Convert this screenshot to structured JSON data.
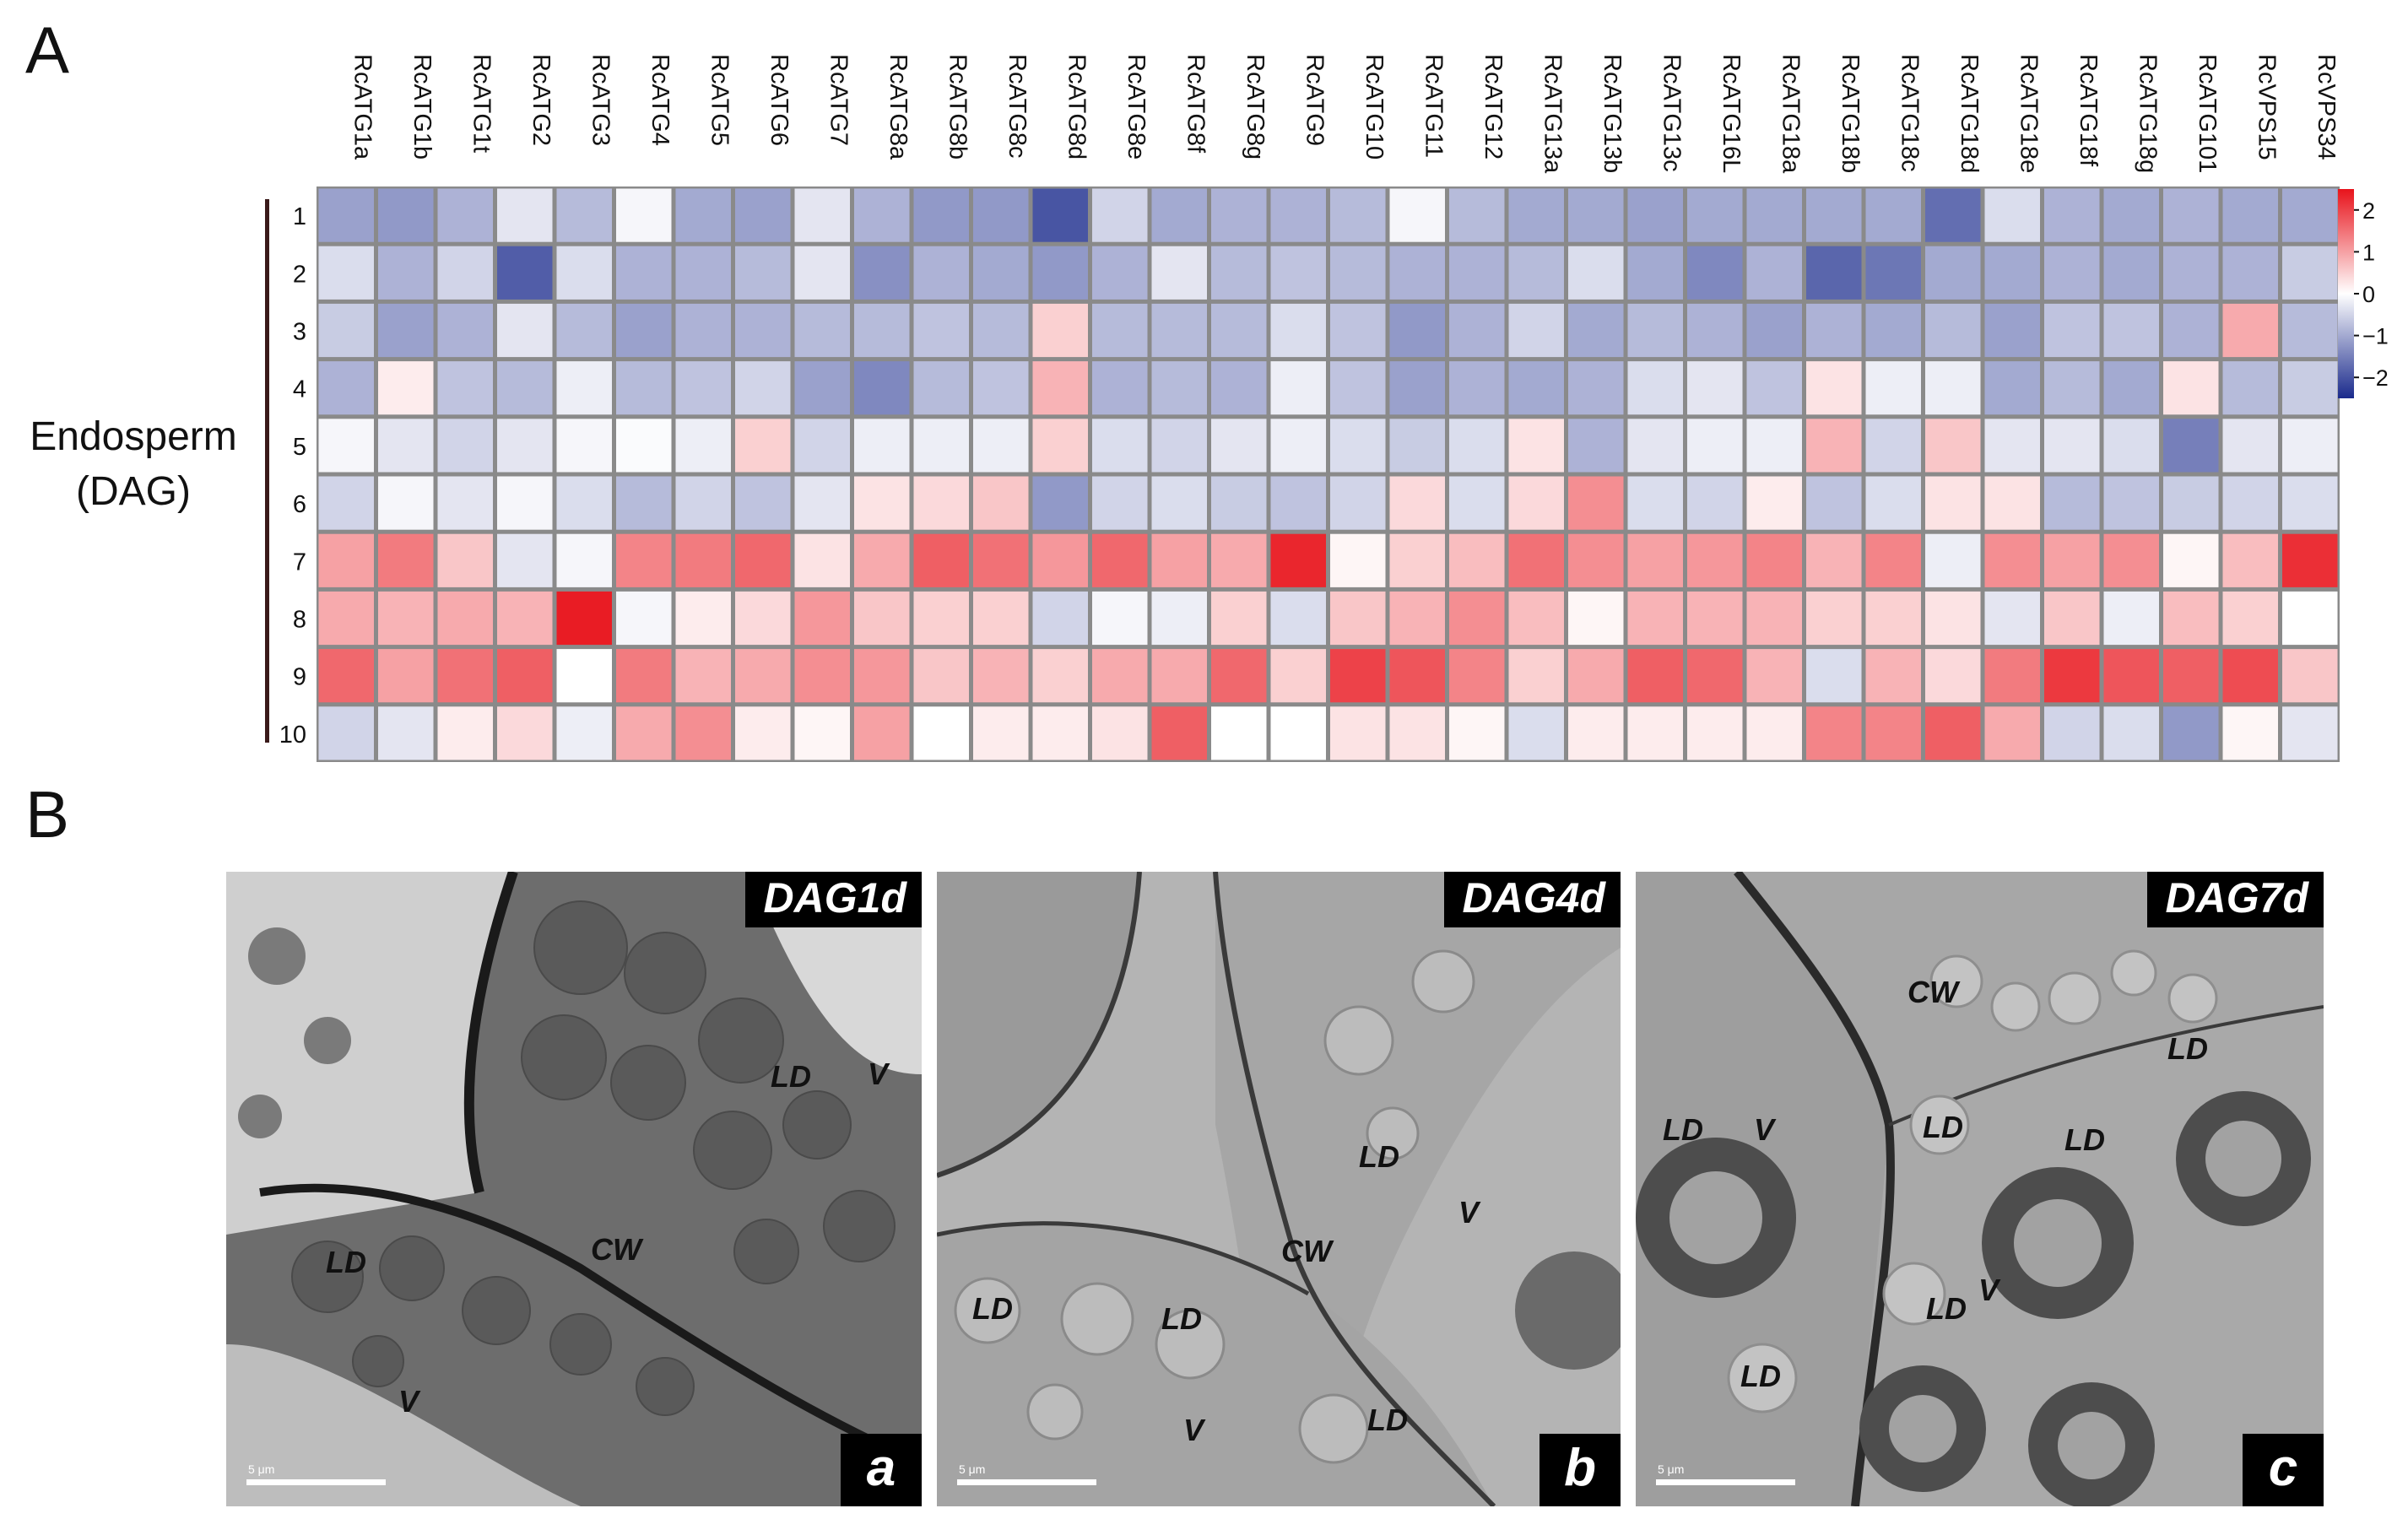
{
  "panel_a": {
    "label": "A",
    "side_label_line1": "Endosperm",
    "side_label_line2": "(DAG)"
  },
  "panel_b": {
    "label": "B"
  },
  "chart_data": {
    "type": "heatmap",
    "columns": [
      "RcATG1a",
      "RcATG1b",
      "RcATG1t",
      "RcATG2",
      "RcATG3",
      "RcATG4",
      "RcATG5",
      "RcATG6",
      "RcATG7",
      "RcATG8a",
      "RcATG8b",
      "RcATG8c",
      "RcATG8d",
      "RcATG8e",
      "RcATG8f",
      "RcATG8g",
      "RcATG9",
      "RcATG10",
      "RcATG11",
      "RcATG12",
      "RcATG13a",
      "RcATG13b",
      "RcATG13c",
      "RcATG16L",
      "RcATG18a",
      "RcATG18b",
      "RcATG18c",
      "RcATG18d",
      "RcATG18e",
      "RcATG18f",
      "RcATG18g",
      "RcATG101",
      "RcVPS15",
      "RcVPS34"
    ],
    "rows": [
      "1",
      "2",
      "3",
      "4",
      "5",
      "6",
      "7",
      "8",
      "9",
      "10"
    ],
    "values": [
      [
        -1.1,
        -1.2,
        -0.9,
        -0.3,
        -0.8,
        -0.1,
        -1.0,
        -1.1,
        -0.3,
        -0.9,
        -1.2,
        -1.2,
        -2.0,
        -0.5,
        -1.0,
        -0.9,
        -0.9,
        -0.8,
        -0.1,
        -0.8,
        -1.0,
        -1.0,
        -1.1,
        -1.0,
        -1.0,
        -1.0,
        -1.0,
        -1.7,
        -0.4,
        -0.9,
        -1.0,
        -0.9,
        -1.0,
        -1.0
      ],
      [
        -0.4,
        -0.9,
        -0.5,
        -1.9,
        -0.4,
        -0.9,
        -0.9,
        -0.8,
        -0.3,
        -1.3,
        -0.9,
        -1.0,
        -1.2,
        -0.9,
        -0.3,
        -0.8,
        -0.7,
        -0.8,
        -0.9,
        -0.9,
        -0.8,
        -0.4,
        -1.0,
        -1.4,
        -0.9,
        -1.8,
        -1.6,
        -1.0,
        -1.0,
        -0.9,
        -1.0,
        -0.9,
        -0.9,
        -0.6
      ],
      [
        -0.6,
        -1.1,
        -0.9,
        -0.3,
        -0.8,
        -1.1,
        -0.9,
        -0.9,
        -0.8,
        -0.8,
        -0.7,
        -0.8,
        0.5,
        -0.8,
        -0.8,
        -0.8,
        -0.4,
        -0.7,
        -1.2,
        -0.9,
        -0.5,
        -1.0,
        -0.8,
        -0.9,
        -1.1,
        -0.9,
        -1.0,
        -0.8,
        -1.1,
        -0.7,
        -0.7,
        -0.9,
        0.9,
        -0.8
      ],
      [
        -0.9,
        0.2,
        -0.7,
        -0.8,
        -0.2,
        -0.8,
        -0.7,
        -0.5,
        -1.1,
        -1.4,
        -0.8,
        -0.7,
        0.8,
        -0.9,
        -0.8,
        -0.9,
        -0.2,
        -0.7,
        -1.1,
        -0.9,
        -1.0,
        -0.9,
        -0.4,
        -0.3,
        -0.7,
        0.3,
        -0.2,
        -0.2,
        -1.0,
        -0.8,
        -1.0,
        0.3,
        -0.8,
        -0.6
      ],
      [
        -0.1,
        -0.3,
        -0.5,
        -0.3,
        -0.1,
        -0.05,
        -0.2,
        0.5,
        -0.5,
        -0.2,
        -0.2,
        -0.2,
        0.5,
        -0.4,
        -0.5,
        -0.3,
        -0.2,
        -0.4,
        -0.6,
        -0.4,
        0.3,
        -0.9,
        -0.3,
        -0.2,
        -0.2,
        0.8,
        -0.5,
        0.6,
        -0.3,
        -0.3,
        -0.4,
        -1.5,
        -0.3,
        -0.2
      ],
      [
        -0.5,
        -0.1,
        -0.3,
        -0.1,
        -0.4,
        -0.8,
        -0.5,
        -0.7,
        -0.3,
        0.3,
        0.4,
        0.6,
        -1.2,
        -0.5,
        -0.4,
        -0.6,
        -0.7,
        -0.5,
        0.4,
        -0.4,
        0.4,
        1.2,
        -0.4,
        -0.5,
        0.2,
        -0.7,
        -0.4,
        0.3,
        0.3,
        -0.8,
        -0.7,
        -0.6,
        -0.5,
        -0.4
      ],
      [
        1.0,
        1.4,
        0.6,
        -0.3,
        -0.1,
        1.3,
        1.4,
        1.6,
        0.3,
        0.9,
        1.7,
        1.5,
        1.1,
        1.6,
        1.0,
        0.9,
        2.3,
        0.1,
        0.5,
        0.7,
        1.5,
        1.2,
        1.0,
        1.1,
        1.3,
        0.8,
        1.3,
        -0.2,
        1.2,
        1.0,
        1.2,
        0.1,
        0.7,
        2.2
      ],
      [
        0.9,
        0.8,
        0.9,
        0.8,
        2.4,
        -0.1,
        0.2,
        0.4,
        1.1,
        0.6,
        0.5,
        0.5,
        -0.5,
        -0.1,
        -0.2,
        0.5,
        -0.4,
        0.6,
        0.8,
        1.2,
        0.7,
        0.1,
        0.8,
        0.8,
        0.8,
        0.5,
        0.5,
        0.3,
        -0.3,
        0.6,
        -0.2,
        0.7,
        0.5,
        0.0
      ],
      [
        1.6,
        1.0,
        1.5,
        1.7,
        0.0,
        1.4,
        0.8,
        0.9,
        1.2,
        1.1,
        0.6,
        0.8,
        0.5,
        0.9,
        0.9,
        1.6,
        0.5,
        2.0,
        1.8,
        1.3,
        0.5,
        0.9,
        1.7,
        1.6,
        0.8,
        -0.4,
        0.8,
        0.4,
        1.4,
        2.1,
        1.8,
        1.7,
        1.9,
        0.6
      ],
      [
        -0.5,
        -0.3,
        0.2,
        0.4,
        -0.2,
        0.9,
        1.2,
        0.2,
        0.1,
        1.0,
        0.0,
        0.2,
        0.2,
        0.3,
        1.7,
        0.0,
        0.0,
        0.3,
        0.3,
        0.1,
        -0.4,
        0.2,
        0.2,
        0.2,
        0.2,
        1.3,
        1.3,
        1.7,
        0.9,
        -0.5,
        -0.4,
        -1.2,
        0.1,
        -0.3
      ]
    ],
    "colorbar_ticks": [
      "2",
      "1",
      "0",
      "−1",
      "−2"
    ],
    "vmin": -2.5,
    "vmax": 2.5,
    "colors": {
      "low": "#1a2a8c",
      "mid": "#ffffff",
      "high": "#e8131b",
      "grid": "#8a8a8a"
    }
  },
  "tem_images": [
    {
      "title": "DAG1d",
      "letter": "a",
      "scale_text": "5 μm",
      "labels": [
        "LD",
        "V",
        "CW",
        "LD",
        "V"
      ]
    },
    {
      "title": "DAG4d",
      "letter": "b",
      "scale_text": "5 μm",
      "labels": [
        "LD",
        "V",
        "CW",
        "LD",
        "LD",
        "V",
        "LD"
      ]
    },
    {
      "title": "DAG7d",
      "letter": "c",
      "scale_text": "5 μm",
      "labels": [
        "CW",
        "LD",
        "LD",
        "V",
        "LD",
        "LD",
        "LD",
        "V",
        "LD"
      ]
    }
  ]
}
